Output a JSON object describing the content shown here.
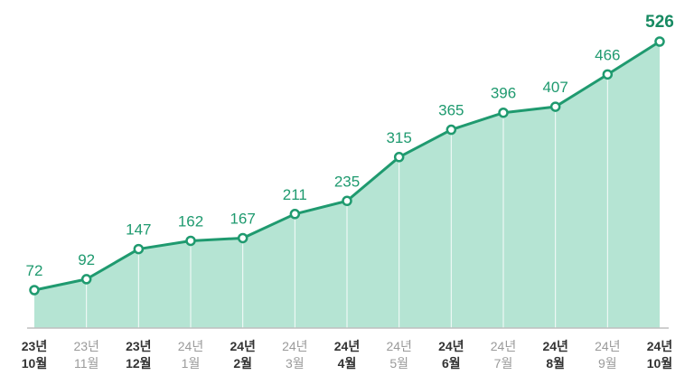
{
  "chart_data": {
    "type": "area",
    "title": "",
    "xlabel": "",
    "ylabel": "",
    "categories": [
      {
        "year": "23년",
        "month": "10월"
      },
      {
        "year": "23년",
        "month": "11월"
      },
      {
        "year": "23년",
        "month": "12월"
      },
      {
        "year": "24년",
        "month": "1월"
      },
      {
        "year": "24년",
        "month": "2월"
      },
      {
        "year": "24년",
        "month": "3월"
      },
      {
        "year": "24년",
        "month": "4월"
      },
      {
        "year": "24년",
        "month": "5월"
      },
      {
        "year": "24년",
        "month": "6월"
      },
      {
        "year": "24년",
        "month": "7월"
      },
      {
        "year": "24년",
        "month": "8월"
      },
      {
        "year": "24년",
        "month": "9월"
      },
      {
        "year": "24년",
        "month": "10월"
      }
    ],
    "values": [
      72,
      92,
      147,
      162,
      167,
      211,
      235,
      315,
      365,
      396,
      407,
      466,
      526
    ],
    "tick_emphasis": [
      "dark",
      "light",
      "dark",
      "light",
      "dark",
      "light",
      "dark",
      "light",
      "dark",
      "light",
      "dark",
      "light",
      "dark"
    ],
    "highlight_last": true,
    "grid": false,
    "colors": {
      "line": "#1f9a6f",
      "fill": "#b5e4d3",
      "marker_fill": "#ffffff",
      "baseline": "#bfbfbf",
      "drop_lines": "#ffffff"
    }
  }
}
